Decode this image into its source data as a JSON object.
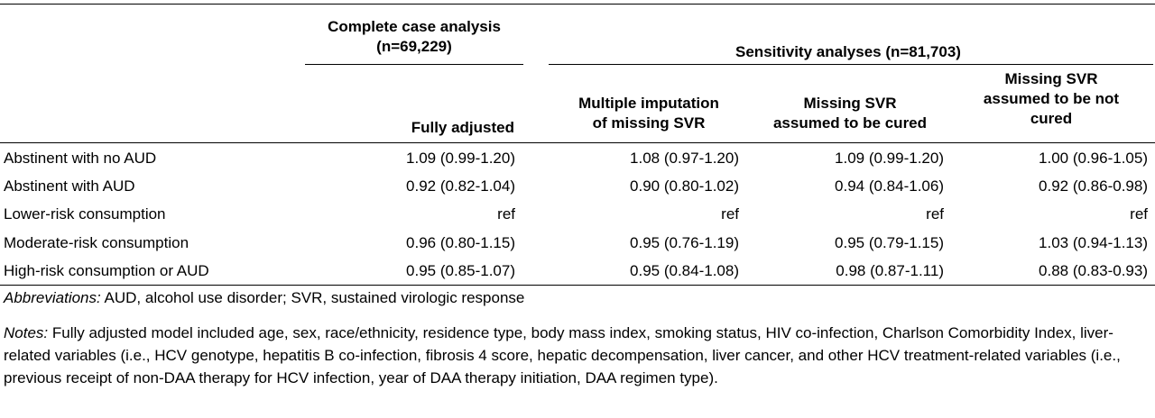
{
  "headers": {
    "complete_case": "Complete case analysis\n(n=69,229)",
    "sensitivity": "Sensitivity analyses (n=81,703)",
    "col1": "Fully adjusted",
    "col2": "Multiple imputation\nof missing SVR",
    "col3": "Missing SVR\nassumed to be cured",
    "col4": "Missing SVR\nassumed to be not\ncured"
  },
  "rows": [
    {
      "label": "Abstinent with no AUD",
      "values": [
        "1.09 (0.99-1.20)",
        "1.08 (0.97-1.20)",
        "1.09 (0.99-1.20)",
        "1.00 (0.96-1.05)"
      ]
    },
    {
      "label": "Abstinent with AUD",
      "values": [
        "0.92 (0.82-1.04)",
        "0.90 (0.80-1.02)",
        "0.94 (0.84-1.06)",
        "0.92 (0.86-0.98)"
      ]
    },
    {
      "label": "Lower-risk consumption",
      "values": [
        "ref",
        "ref",
        "ref",
        "ref"
      ]
    },
    {
      "label": "Moderate-risk consumption",
      "values": [
        "0.96 (0.80-1.15)",
        "0.95 (0.76-1.19)",
        "0.95 (0.79-1.15)",
        "1.03 (0.94-1.13)"
      ]
    },
    {
      "label": "High-risk consumption or AUD",
      "values": [
        "0.95 (0.85-1.07)",
        "0.95 (0.84-1.08)",
        "0.98 (0.87-1.11)",
        "0.88 (0.83-0.93)"
      ]
    }
  ],
  "abbreviations": {
    "label": "Abbreviations:",
    "text": " AUD, alcohol use disorder; SVR, sustained virologic response"
  },
  "notes": {
    "label": "Notes:",
    "text": " Fully adjusted model included age, sex, race/ethnicity, residence type, body mass index, smoking status, HIV co-infection, Charlson Comorbidity Index, liver-related variables (i.e., HCV genotype, hepatitis B co-infection, fibrosis 4 score, hepatic decompensation, liver cancer, and other HCV treatment-related variables (i.e., previous receipt of non-DAA therapy for HCV infection, year of DAA therapy initiation, DAA regimen type)."
  }
}
